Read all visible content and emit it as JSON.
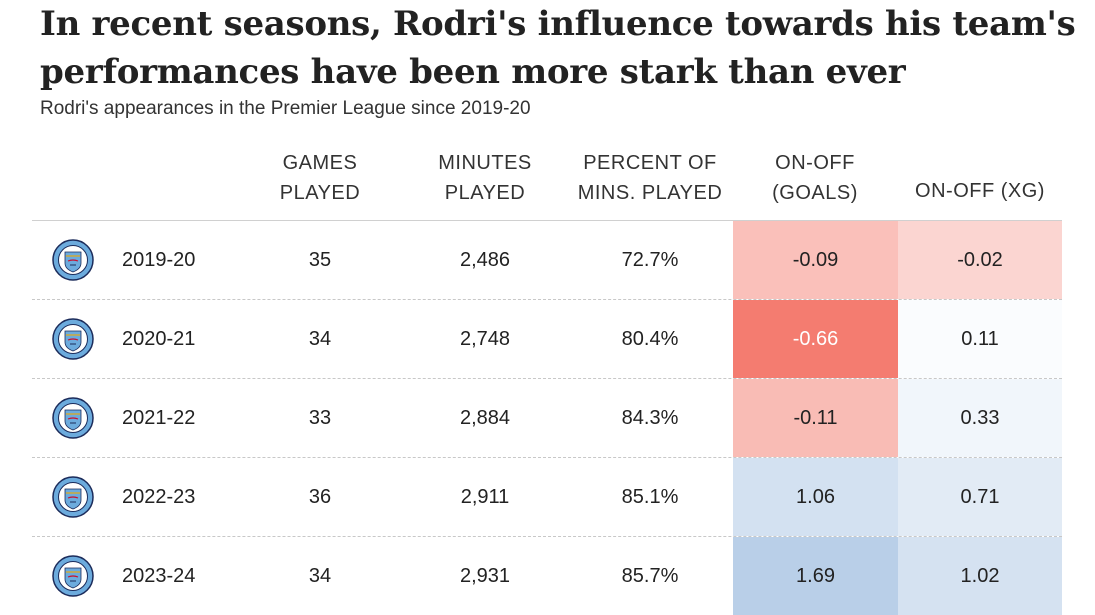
{
  "title": "In recent seasons, Rodri's influence towards his team's performances have been more stark than ever",
  "subtitle": "Rodri's appearances in the Premier League since 2019-20",
  "colors": {
    "negative_strong": "#f47c70",
    "negative_light": "#fde8e5",
    "positive_strong": "#b9cfe8",
    "positive_light": "#eef3f9"
  },
  "icons": {
    "team_badge": "manchester-city-badge-icon"
  },
  "chart_data": {
    "type": "table",
    "columns": [
      {
        "line1": "GAMES",
        "line2": "PLAYED"
      },
      {
        "line1": "MINUTES",
        "line2": "PLAYED"
      },
      {
        "line1": "PERCENT OF",
        "line2": "MINS. PLAYED"
      },
      {
        "line1": "ON-OFF",
        "line2": "(GOALS)"
      },
      {
        "line1": "ON-OFF (XG)",
        "line2": ""
      }
    ],
    "rows": [
      {
        "season": "2019-20",
        "games": "35",
        "minutes": "2,486",
        "percent": "72.7%",
        "goals": "-0.09",
        "xg": "-0.02",
        "goals_value": -0.09,
        "xg_value": -0.02
      },
      {
        "season": "2020-21",
        "games": "34",
        "minutes": "2,748",
        "percent": "80.4%",
        "goals": "-0.66",
        "xg": "0.11",
        "goals_value": -0.66,
        "xg_value": 0.11
      },
      {
        "season": "2021-22",
        "games": "33",
        "minutes": "2,884",
        "percent": "84.3%",
        "goals": "-0.11",
        "xg": "0.33",
        "goals_value": -0.11,
        "xg_value": 0.33
      },
      {
        "season": "2022-23",
        "games": "36",
        "minutes": "2,911",
        "percent": "85.1%",
        "goals": "1.06",
        "xg": "0.71",
        "goals_value": 1.06,
        "xg_value": 0.71
      },
      {
        "season": "2023-24",
        "games": "34",
        "minutes": "2,931",
        "percent": "85.7%",
        "goals": "1.69",
        "xg": "1.02",
        "goals_value": 1.69,
        "xg_value": 1.02
      }
    ]
  }
}
